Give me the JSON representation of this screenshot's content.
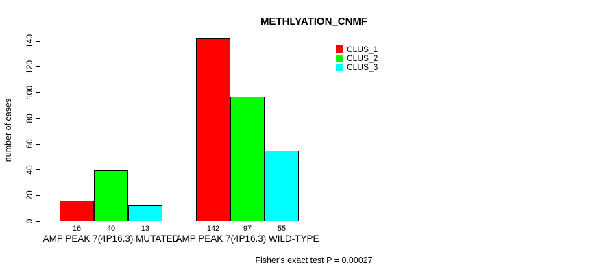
{
  "chart_data": {
    "type": "bar",
    "title": "METHLYATION_CNMF",
    "xlabel": "",
    "ylabel": "number of cases",
    "ylim": [
      0,
      140
    ],
    "yticks": [
      0,
      20,
      40,
      60,
      80,
      100,
      120,
      140
    ],
    "grid": false,
    "legend_position": "top-right",
    "categories": [
      "AMP PEAK 7(4P16.3) MUTATED",
      "AMP PEAK 7(4P16.3) WILD-TYPE"
    ],
    "series": [
      {
        "name": "CLUS_1",
        "color": "#ff0000",
        "values": [
          16,
          142
        ]
      },
      {
        "name": "CLUS_2",
        "color": "#00ff00",
        "values": [
          40,
          97
        ]
      },
      {
        "name": "CLUS_3",
        "color": "#00ffff",
        "values": [
          13,
          55
        ]
      }
    ],
    "bar_value_labels": [
      [
        "16",
        "40",
        "13"
      ],
      [
        "142",
        "97",
        "55"
      ]
    ],
    "annotation": "Fisher's exact test P = 0.00027"
  },
  "legend": {
    "items": [
      {
        "label": "CLUS_1",
        "color": "#ff0000"
      },
      {
        "label": "CLUS_2",
        "color": "#00ff00"
      },
      {
        "label": "CLUS_3",
        "color": "#00ffff"
      }
    ]
  }
}
